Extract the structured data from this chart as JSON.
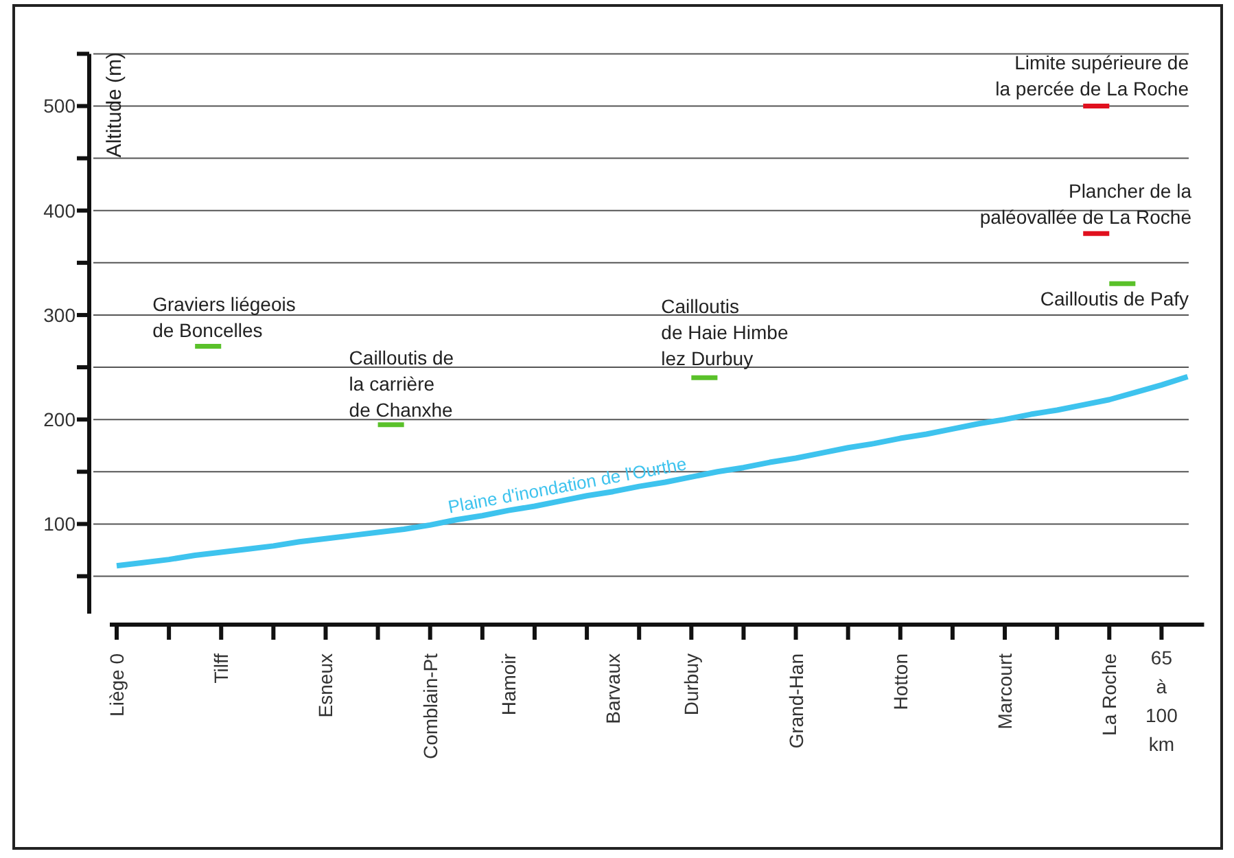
{
  "chart_data": {
    "type": "line",
    "ylabel": "Altitude (m)",
    "xlabel": "65 à 100 km",
    "ylim": [
      0,
      550
    ],
    "categories": [
      "Liège 0",
      null,
      null,
      null,
      "Tilff",
      null,
      null,
      null,
      "Esneux",
      null,
      null,
      null,
      "Comblain-Pt",
      null,
      null,
      "Hamoir",
      null,
      null,
      null,
      "Barvaux",
      null,
      null,
      "Durbuy",
      null,
      null,
      null,
      "Grand-Han",
      null,
      null,
      null,
      "Hotton",
      null,
      null,
      null,
      "Marcourt",
      null,
      null,
      null,
      "La Roche",
      null,
      null,
      null
    ],
    "yticks": [
      {
        "value": 50,
        "label": null
      },
      100,
      {
        "value": 150,
        "label": null
      },
      200,
      {
        "value": 250,
        "label": null
      },
      300,
      {
        "value": 350,
        "label": null
      },
      400,
      {
        "value": 450,
        "label": null
      },
      500,
      {
        "value": 550,
        "label": null
      }
    ],
    "grid": "y",
    "legend": false,
    "marker": "none",
    "line_style": "solid",
    "series": [
      {
        "name": "Plaine d'inondation de l'Ourthe",
        "color": "#3ec3ee",
        "values": [
          60,
          63,
          66,
          70,
          73,
          76,
          79,
          83,
          86,
          89,
          92,
          95,
          99,
          104,
          108,
          113,
          117,
          122,
          127,
          131,
          136,
          140,
          145,
          150,
          154,
          159,
          163,
          168,
          173,
          177,
          182,
          186,
          191,
          196,
          200,
          205,
          209,
          214,
          219,
          226,
          233,
          241
        ]
      },
      {
        "name": "Graviers liégeois\nde Boncelles",
        "color": "#5ac12a",
        "values": [
          null,
          null,
          null,
          270,
          270,
          null,
          null,
          null,
          null,
          null,
          null,
          null,
          null,
          null,
          null,
          null,
          null,
          null,
          null,
          null,
          null,
          null,
          null,
          null,
          null,
          null,
          null,
          null,
          null,
          null,
          null,
          null,
          null,
          null,
          null,
          null,
          null,
          null,
          null,
          null,
          null,
          null
        ]
      },
      {
        "name": "Cailloutis de\nla carrière\nde Chanxhe",
        "color": "#5ac12a",
        "values": [
          null,
          null,
          null,
          null,
          null,
          null,
          null,
          null,
          null,
          null,
          195,
          195,
          null,
          null,
          null,
          null,
          null,
          null,
          null,
          null,
          null,
          null,
          null,
          null,
          null,
          null,
          null,
          null,
          null,
          null,
          null,
          null,
          null,
          null,
          null,
          null,
          null,
          null,
          null,
          null,
          null,
          null
        ]
      },
      {
        "name": "Cailloutis\nde Haie Himbe\nlez Durbuy",
        "color": "#5ac12a",
        "values": [
          null,
          null,
          null,
          null,
          null,
          null,
          null,
          null,
          null,
          null,
          null,
          null,
          null,
          null,
          null,
          null,
          null,
          null,
          null,
          null,
          null,
          null,
          240,
          240,
          null,
          null,
          null,
          null,
          null,
          null,
          null,
          null,
          null,
          null,
          null,
          null,
          null,
          null,
          null,
          null,
          null,
          null
        ]
      },
      {
        "name": "Cailloutis de Pafy",
        "color": "#5ac12a",
        "values": [
          null,
          null,
          null,
          null,
          null,
          null,
          null,
          null,
          null,
          null,
          null,
          null,
          null,
          null,
          null,
          null,
          null,
          null,
          null,
          null,
          null,
          null,
          null,
          null,
          null,
          null,
          null,
          null,
          null,
          null,
          null,
          null,
          null,
          null,
          null,
          null,
          null,
          null,
          330,
          330,
          null,
          null
        ]
      },
      {
        "name": "Plancher de la\npaléovallée de La Roche",
        "color": "#e0101e",
        "values": [
          null,
          null,
          null,
          null,
          null,
          null,
          null,
          null,
          null,
          null,
          null,
          null,
          null,
          null,
          null,
          null,
          null,
          null,
          null,
          null,
          null,
          null,
          null,
          null,
          null,
          null,
          null,
          null,
          null,
          null,
          null,
          null,
          null,
          null,
          null,
          null,
          null,
          378,
          378,
          null,
          null,
          null
        ]
      },
      {
        "name": "Limite supérieure de\nla percée de La Roche",
        "color": "#e0101e",
        "values": [
          null,
          null,
          null,
          null,
          null,
          null,
          null,
          null,
          null,
          null,
          null,
          null,
          null,
          null,
          null,
          null,
          null,
          null,
          null,
          null,
          null,
          null,
          null,
          null,
          null,
          null,
          null,
          null,
          null,
          null,
          null,
          null,
          null,
          null,
          null,
          null,
          null,
          500,
          500,
          null,
          null,
          null
        ]
      }
    ]
  }
}
